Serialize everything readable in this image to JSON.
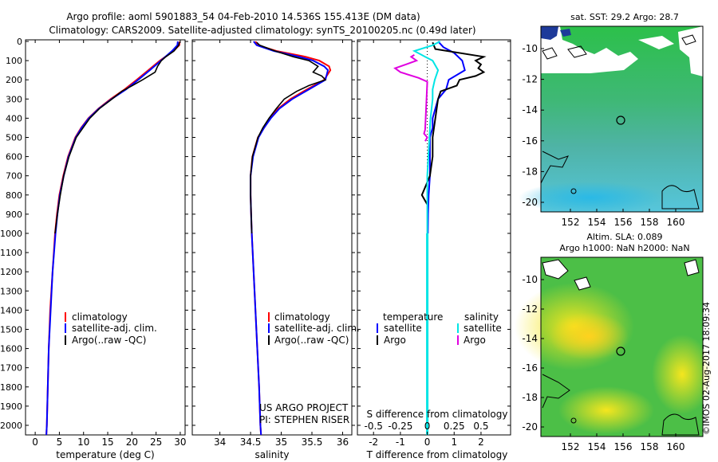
{
  "header": {
    "line1": "Argo profile: aoml 5901883_54 04-Feb-2010 14.536S 155.413E (DM data)",
    "line2": "Climatology: CARS2009. Satellite-adjusted climatology: synTS_20100205.nc (0.49d later)"
  },
  "colors": {
    "climatology": "#ff0000",
    "satellite": "#0000ff",
    "argo": "#000000",
    "sat_salinity": "#00e5e5",
    "argo_salinity": "#e000e0"
  },
  "depth_axis": {
    "min": 0,
    "max": 2050,
    "ticks": [
      0,
      100,
      200,
      300,
      400,
      500,
      600,
      700,
      800,
      900,
      1000,
      1100,
      1200,
      1300,
      1400,
      1500,
      1600,
      1700,
      1800,
      1900,
      2000
    ]
  },
  "chart_data": [
    {
      "type": "line",
      "id": "temperature",
      "xlabel": "temperature (deg C)",
      "xlim": [
        -2,
        31
      ],
      "xticks": [
        "0",
        "5",
        "10",
        "15",
        "20",
        "25",
        "30"
      ],
      "xtick_values": [
        0,
        5,
        10,
        15,
        20,
        25,
        30
      ],
      "legend": {
        "items": [
          "climatology",
          "satellite-adj. clim.",
          "Argo(..raw -QC)"
        ]
      },
      "series": [
        {
          "name": "climatology",
          "depth": [
            0,
            20,
            50,
            100,
            150,
            200,
            250,
            300,
            350,
            400,
            450,
            500,
            600,
            700,
            800,
            900,
            1000,
            1200,
            1400,
            1600,
            1800,
            2000,
            2050
          ],
          "values": [
            29.9,
            29.8,
            28.6,
            25.8,
            23.4,
            21.0,
            18.5,
            15.6,
            13.1,
            11.0,
            9.5,
            8.3,
            6.8,
            5.8,
            5.0,
            4.5,
            4.1,
            3.6,
            3.1,
            2.8,
            2.6,
            2.4,
            2.3
          ]
        },
        {
          "name": "satellite-adj. clim.",
          "depth": [
            0,
            20,
            50,
            100,
            150,
            200,
            250,
            300,
            350,
            400,
            450,
            500,
            600,
            700,
            800,
            900,
            1000,
            1200,
            1400,
            1600,
            1800,
            2000,
            2050
          ],
          "values": [
            29.5,
            29.4,
            28.3,
            26.0,
            23.7,
            21.3,
            18.8,
            15.8,
            13.2,
            11.1,
            9.6,
            8.4,
            6.9,
            5.9,
            5.1,
            4.6,
            4.2,
            3.6,
            3.2,
            2.8,
            2.6,
            2.4,
            2.3
          ]
        },
        {
          "name": "Argo",
          "depth": [
            5,
            20,
            50,
            80,
            100,
            130,
            160,
            200,
            230,
            260,
            300,
            350,
            400,
            450,
            500,
            600,
            700,
            800,
            900,
            1000
          ],
          "values": [
            29.8,
            29.7,
            28.7,
            27.0,
            26.1,
            25.3,
            24.8,
            22.2,
            20.1,
            17.9,
            15.9,
            13.3,
            11.3,
            9.9,
            8.5,
            7.0,
            5.9,
            5.2,
            4.6,
            4.1
          ]
        }
      ]
    },
    {
      "type": "line",
      "id": "salinity",
      "xlabel": "salinity",
      "xlim": [
        33.55,
        36.15
      ],
      "xticks": [
        "34",
        "34.5",
        "35",
        "35.5",
        "36"
      ],
      "xtick_values": [
        34,
        34.5,
        35,
        35.5,
        36
      ],
      "legend": {
        "items": [
          "climatology",
          "satellite-adj. clim.",
          "Argo(..raw -QC)"
        ]
      },
      "annotation": [
        "US ARGO PROJECT",
        "PI: STEPHEN RISER"
      ],
      "series": [
        {
          "name": "climatology",
          "depth": [
            0,
            20,
            50,
            80,
            100,
            130,
            150,
            200,
            250,
            300,
            350,
            400,
            450,
            500,
            600,
            700,
            800,
            900,
            1000,
            1200,
            1400,
            1600,
            1800,
            2000,
            2050
          ],
          "values": [
            34.58,
            34.62,
            34.92,
            35.4,
            35.62,
            35.78,
            35.8,
            35.7,
            35.42,
            35.15,
            34.95,
            34.82,
            34.72,
            34.62,
            34.53,
            34.5,
            34.5,
            34.51,
            34.52,
            34.55,
            34.58,
            34.61,
            34.64,
            34.66,
            34.67
          ]
        },
        {
          "name": "satellite-adj. clim.",
          "depth": [
            0,
            20,
            50,
            80,
            100,
            130,
            150,
            200,
            250,
            300,
            350,
            400,
            450,
            500,
            600,
            700,
            800,
            900,
            1000,
            1200,
            1400,
            1600,
            1800,
            2000,
            2050
          ],
          "values": [
            34.55,
            34.6,
            34.88,
            35.3,
            35.52,
            35.7,
            35.76,
            35.72,
            35.45,
            35.18,
            34.97,
            34.83,
            34.72,
            34.63,
            34.54,
            34.5,
            34.5,
            34.51,
            34.52,
            34.55,
            34.58,
            34.61,
            34.64,
            34.66,
            34.67
          ]
        },
        {
          "name": "Argo",
          "depth": [
            5,
            20,
            50,
            80,
            100,
            130,
            160,
            180,
            200,
            230,
            260,
            300,
            350,
            400,
            450,
            500,
            600,
            700,
            800,
            900,
            1000
          ],
          "values": [
            34.6,
            34.65,
            34.9,
            35.2,
            35.45,
            35.6,
            35.52,
            35.66,
            35.72,
            35.45,
            35.25,
            35.05,
            34.92,
            34.8,
            34.7,
            34.62,
            34.53,
            34.5,
            34.5,
            34.51,
            34.52
          ]
        }
      ]
    },
    {
      "type": "line",
      "id": "difference",
      "xlabel_top": "S difference from climatology",
      "xlabel": "T difference from climatology",
      "xlim": [
        -2.6,
        3.1
      ],
      "xticks": [
        "-2",
        "-1",
        "0",
        "1",
        "2"
      ],
      "xtick_values": [
        -2,
        -1,
        0,
        1,
        2
      ],
      "sticks": [
        "-0.5",
        "-0.25",
        "0",
        "0.25",
        "0.5"
      ],
      "stick_values": [
        -0.5,
        -0.25,
        0,
        0.25,
        0.5
      ],
      "s_scale": 4,
      "legend": {
        "temp_title": "temperature",
        "sal_title": "salinity",
        "items": [
          "satellite",
          "Argo",
          "satellite",
          "Argo"
        ]
      },
      "series": [
        {
          "name": "T satellite",
          "depth": [
            0,
            30,
            60,
            100,
            150,
            200,
            250,
            300,
            350,
            400,
            450,
            500,
            600,
            700,
            800,
            900,
            1000
          ],
          "values": [
            0.4,
            0.6,
            1.0,
            1.3,
            1.4,
            0.8,
            0.7,
            0.4,
            0.3,
            0.2,
            0.2,
            0.1,
            0.1,
            0.1,
            0.05,
            0.03,
            0.02
          ]
        },
        {
          "name": "T Argo",
          "depth": [
            5,
            40,
            80,
            100,
            120,
            140,
            160,
            180,
            200,
            230,
            260,
            300,
            400,
            500,
            600,
            700,
            750,
            800,
            850
          ],
          "values": [
            0.2,
            0.3,
            2.1,
            1.8,
            2.0,
            1.9,
            2.1,
            1.8,
            1.2,
            1.1,
            0.5,
            0.4,
            0.3,
            0.2,
            0.2,
            0.1,
            -0.05,
            -0.2,
            0.0
          ]
        },
        {
          "name": "S satellite",
          "depth": [
            0,
            20,
            50,
            80,
            100,
            150,
            200,
            250,
            300,
            350,
            400,
            500,
            600,
            700,
            800,
            900,
            1000,
            1500,
            2050
          ],
          "values": [
            0.12,
            0.05,
            -0.12,
            -0.02,
            0.05,
            0.1,
            0.07,
            0.05,
            0.05,
            0.04,
            0.03,
            0.02,
            0.01,
            0.0,
            0.0,
            0.0,
            0.0,
            0.0,
            0.0
          ]
        },
        {
          "name": "S Argo",
          "depth": [
            70,
            80,
            100,
            140,
            160,
            190,
            210,
            460,
            480,
            500,
            520
          ],
          "values": [
            -0.12,
            -0.15,
            -0.1,
            -0.3,
            -0.25,
            -0.08,
            0.0,
            -0.02,
            -0.03,
            0.0,
            -0.02
          ]
        }
      ]
    }
  ],
  "maps": {
    "top": {
      "title": "sat. SST: 29.2 Argo: 28.7",
      "yticks": [
        "-10",
        "-12",
        "-14",
        "-16",
        "-18",
        "-20"
      ],
      "xticks": [
        "152",
        "154",
        "156",
        "158",
        "160"
      ]
    },
    "bottom": {
      "title1": "Altim. SLA: 0.089",
      "title2": "Argo h1000: NaN h2000: NaN",
      "yticks": [
        "-10",
        "-12",
        "-14",
        "-16",
        "-18",
        "-20"
      ],
      "xticks": [
        "152",
        "154",
        "156",
        "158",
        "160"
      ]
    }
  },
  "credit": "©IMOS 02-Aug-2017 18:09:34"
}
